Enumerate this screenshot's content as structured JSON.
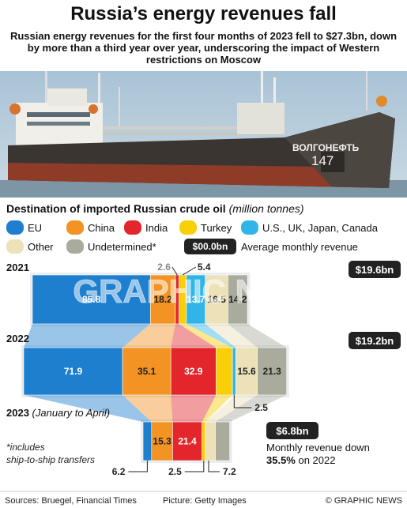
{
  "header": {
    "title": "Russia’s energy revenues fall",
    "subtitle": "Russian energy revenues for the first four months of 2023 fell to $27.3bn, down by more than a third year over year, underscoring the impact of Western restrictions on Moscow"
  },
  "photo": {
    "ship_name": "ВОЛГОНЕФТЬ",
    "ship_number": "147"
  },
  "chart_data": {
    "type": "stacked-bar",
    "title": "Destination of imported Russian crude oil",
    "unit": "(million tonnes)",
    "categories": [
      "EU",
      "China",
      "India",
      "Turkey",
      "U.S., UK, Japan, Canada",
      "Other",
      "Undetermined*"
    ],
    "colors": [
      "#1f7fcf",
      "#f39323",
      "#e3262b",
      "#f9cf07",
      "#31b5e8",
      "#ece1b7",
      "#a9ab9c"
    ],
    "label_colors": [
      "#ffffff",
      "#222222",
      "#ffffff",
      "#222222",
      "#ffffff",
      "#222222",
      "#222222"
    ],
    "revenue_legend": {
      "badge": "$00.0bn",
      "label": "Average monthly revenue"
    },
    "rows": [
      {
        "year": "2021",
        "note": "",
        "revenue": "$19.6bn",
        "values": [
          85.8,
          18.2,
          2.6,
          5.4,
          13.7,
          16.5,
          14.2
        ]
      },
      {
        "year": "2022",
        "note": "",
        "revenue": "$19.2bn",
        "values": [
          71.9,
          35.1,
          32.9,
          11.9,
          2.5,
          15.6,
          21.3
        ]
      },
      {
        "year": "2023",
        "note": "(January to April)",
        "revenue": "$6.8bn",
        "values": [
          6.2,
          15.3,
          21.4,
          2.5,
          0,
          7.2,
          10.4
        ]
      }
    ],
    "footnote": "*includes ship-to-ship transfers",
    "decline_note": {
      "text": "Monthly revenue down",
      "value": "35.5%",
      "suffix": " on 2022"
    }
  },
  "footer": {
    "sources": "Sources: Bruegel, Financial Times",
    "picture": "Picture: Getty Images",
    "credit": "© GRAPHIC NEWS"
  },
  "watermark": "GRAPHIC NEWS"
}
